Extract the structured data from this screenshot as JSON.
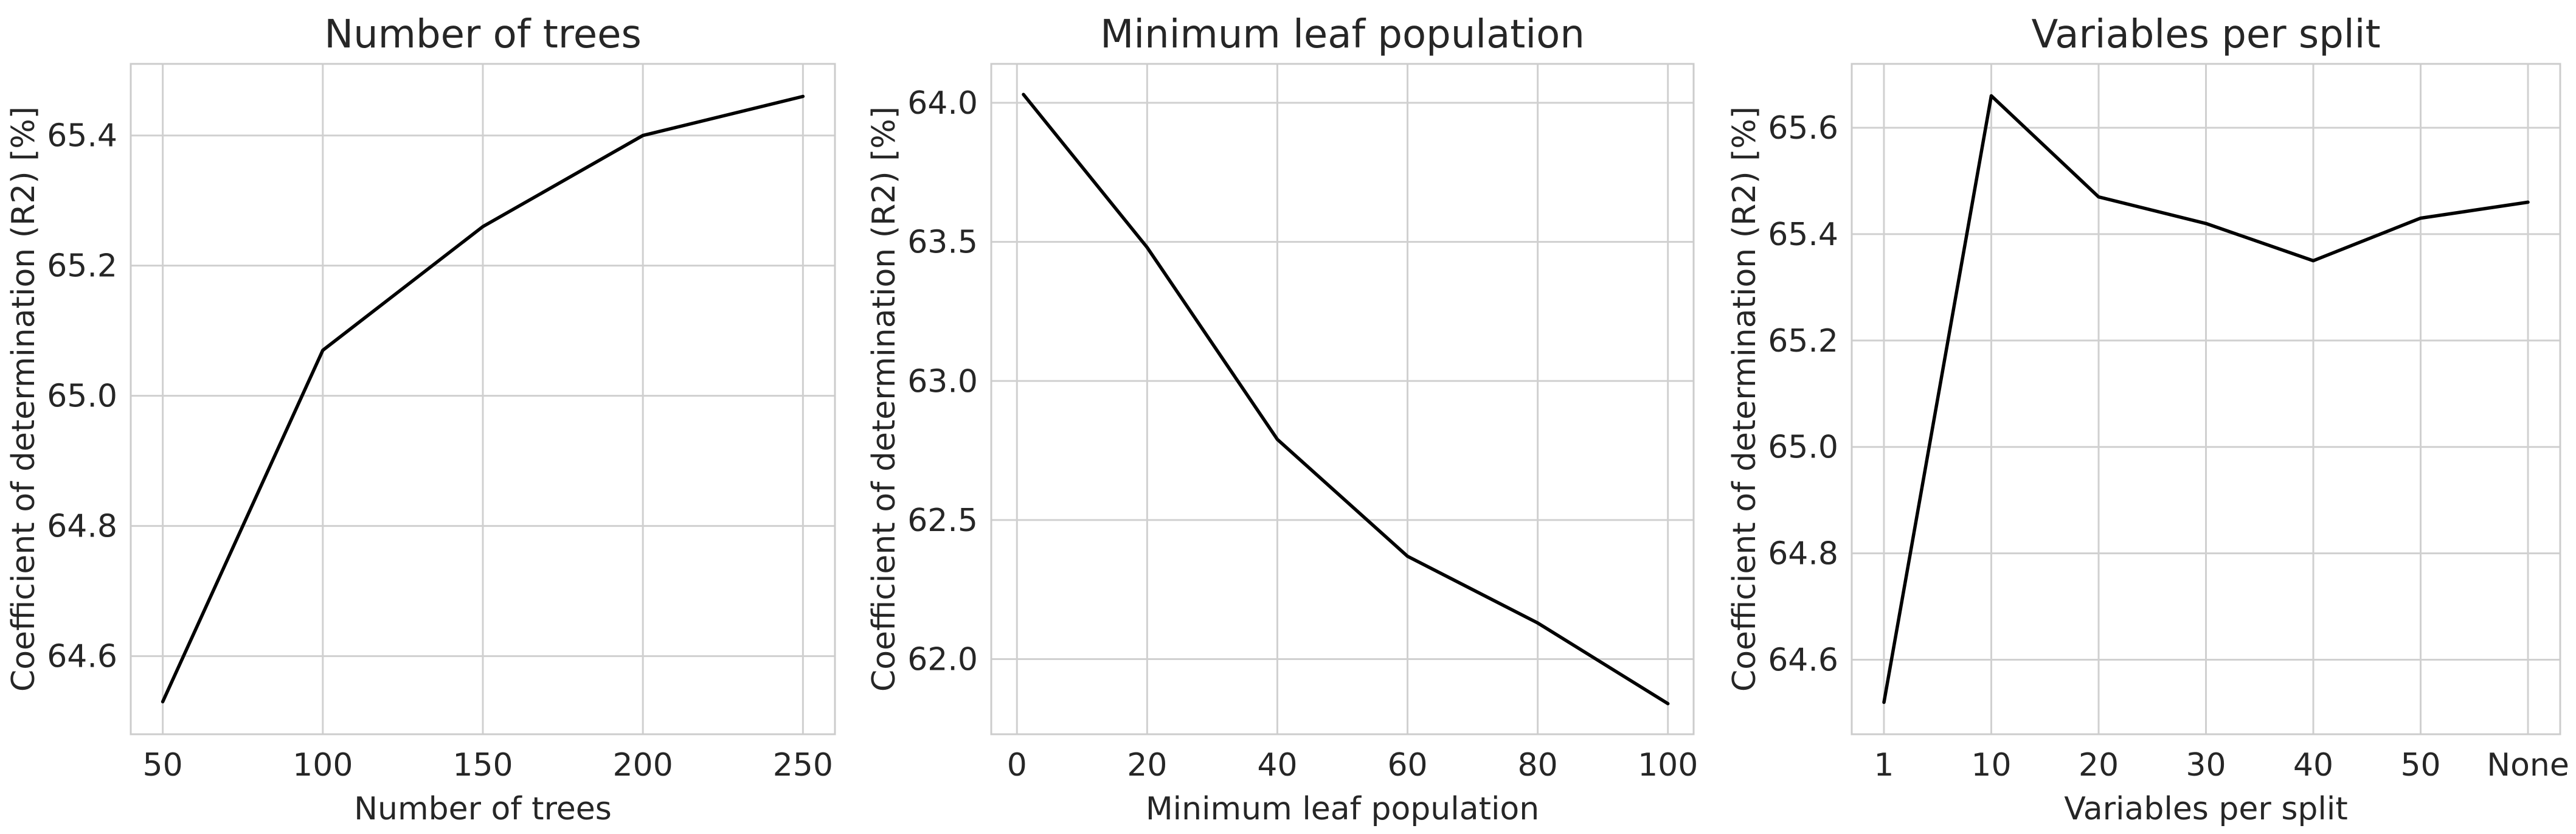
{
  "chart_data": [
    {
      "type": "line",
      "title": "Number of trees",
      "xlabel": "Number of trees",
      "ylabel": "Coefficient of determination (R2) [%]",
      "x": [
        50,
        100,
        150,
        200,
        250
      ],
      "y": [
        64.53,
        65.07,
        65.26,
        65.4,
        65.46
      ],
      "xlim": [
        40,
        260
      ],
      "ylim": [
        64.48,
        65.51
      ],
      "xticks": [
        50,
        100,
        150,
        200,
        250
      ],
      "xtick_labels": [
        "50",
        "100",
        "150",
        "200",
        "250"
      ],
      "yticks": [
        64.6,
        64.8,
        65.0,
        65.2,
        65.4
      ],
      "ytick_labels": [
        "64.6",
        "64.8",
        "65.0",
        "65.2",
        "65.4"
      ],
      "grid": true,
      "color": "#000000"
    },
    {
      "type": "line",
      "title": "Minimum leaf population",
      "xlabel": "Minimum leaf population",
      "ylabel": "Coefficient of determination (R2) [%]",
      "x": [
        1,
        20,
        40,
        60,
        80,
        100
      ],
      "y": [
        64.03,
        63.48,
        62.79,
        62.37,
        62.13,
        61.84
      ],
      "xlim": [
        -3.95,
        103.95
      ],
      "ylim": [
        61.73,
        64.14
      ],
      "xticks": [
        0,
        20,
        40,
        60,
        80,
        100
      ],
      "xtick_labels": [
        "0",
        "20",
        "40",
        "60",
        "80",
        "100"
      ],
      "yticks": [
        62.0,
        62.5,
        63.0,
        63.5,
        64.0
      ],
      "ytick_labels": [
        "62.0",
        "62.5",
        "63.0",
        "63.5",
        "64.0"
      ],
      "grid": true,
      "color": "#000000"
    },
    {
      "type": "line",
      "title": "Variables per split",
      "xlabel": "Variables per split",
      "ylabel": "Coefficient of determination (R2) [%]",
      "x": [
        0,
        1,
        2,
        3,
        4,
        5,
        6
      ],
      "y": [
        64.52,
        65.66,
        65.47,
        65.42,
        65.35,
        65.43,
        65.46
      ],
      "xlim": [
        -0.3,
        6.3
      ],
      "ylim": [
        64.46,
        65.72
      ],
      "xticks": [
        0,
        1,
        2,
        3,
        4,
        5,
        6
      ],
      "xtick_labels": [
        "1",
        "10",
        "20",
        "30",
        "40",
        "50",
        "None"
      ],
      "yticks": [
        64.6,
        64.8,
        65.0,
        65.2,
        65.4,
        65.6
      ],
      "ytick_labels": [
        "64.6",
        "64.8",
        "65.0",
        "65.2",
        "65.4",
        "65.6"
      ],
      "grid": true,
      "color": "#000000"
    }
  ]
}
